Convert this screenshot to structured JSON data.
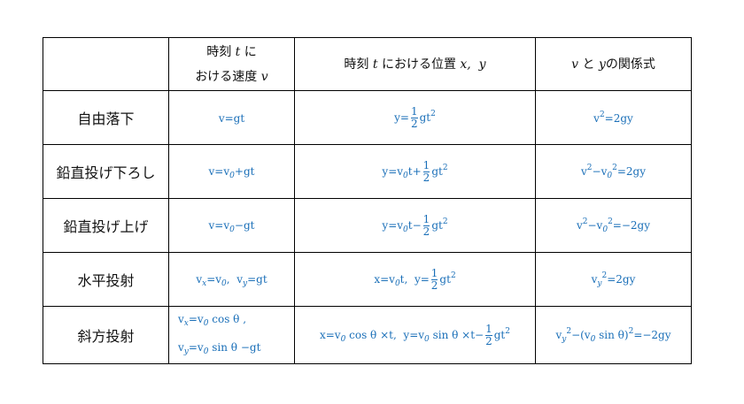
{
  "header": {
    "col2_line1": "時刻",
    "col2_t": "t",
    "col2_ni": "に",
    "col2_line2": "おける速度",
    "col2_v": "v",
    "col3_a": "時刻",
    "col3_t": "t",
    "col3_b": "における位置",
    "col3_x": "x,",
    "col3_y": "y",
    "col4_v": "v",
    "col4_to": "と",
    "col4_y": "y",
    "col4_rest": "の関係式"
  },
  "formula_color": "#1a6fb8",
  "rows": [
    {
      "label": "自由落下",
      "velocity": [
        [
          "v=gt"
        ]
      ],
      "position": [
        "y=",
        {
          "frac": [
            "1",
            "2"
          ]
        },
        "gt",
        {
          "sup": "2"
        }
      ],
      "relation": [
        "v",
        {
          "sup": "2"
        },
        "=2gy"
      ]
    },
    {
      "label": "鉛直投げ下ろし",
      "velocity": [
        [
          "v=v",
          {
            "sub": "0"
          },
          "+gt"
        ]
      ],
      "position": [
        "y=v",
        {
          "sub": "0"
        },
        "t+",
        {
          "frac": [
            "1",
            "2"
          ]
        },
        "gt",
        {
          "sup": "2"
        }
      ],
      "relation": [
        "v",
        {
          "sup": "2"
        },
        "−v",
        {
          "sub": "0"
        },
        {
          "sup": "2"
        },
        "=2gy"
      ]
    },
    {
      "label": "鉛直投げ上げ",
      "velocity": [
        [
          "v=v",
          {
            "sub": "0"
          },
          "−gt"
        ]
      ],
      "position": [
        "y=v",
        {
          "sub": "0"
        },
        "t−",
        {
          "frac": [
            "1",
            "2"
          ]
        },
        "gt",
        {
          "sup": "2"
        }
      ],
      "relation": [
        "v",
        {
          "sup": "2"
        },
        "−v",
        {
          "sub": "0"
        },
        {
          "sup": "2"
        },
        "=−2gy"
      ]
    },
    {
      "label": "水平投射",
      "velocity": [
        [
          "v",
          {
            "sub": "x"
          },
          "=v",
          {
            "sub": "0"
          },
          ",  v",
          {
            "sub": "y"
          },
          "=gt"
        ]
      ],
      "position": [
        "x=v",
        {
          "sub": "0"
        },
        "t,  y=",
        {
          "frac": [
            "1",
            "2"
          ]
        },
        "gt",
        {
          "sup": "2"
        }
      ],
      "relation": [
        "v",
        {
          "sub": "y"
        },
        {
          "sup": "2"
        },
        "=2gy"
      ]
    },
    {
      "label": "斜方投射",
      "velocity": [
        [
          "v",
          {
            "sub": "x"
          },
          "=v",
          {
            "sub": "0"
          },
          " cos θ ,"
        ],
        [
          "v",
          {
            "sub": "y"
          },
          "=v",
          {
            "sub": "0"
          },
          " sin θ −gt"
        ]
      ],
      "position": [
        "x=v",
        {
          "sub": "0"
        },
        " cos θ ×t,  y=v",
        {
          "sub": "0"
        },
        " sin θ ×t−",
        {
          "frac": [
            "1",
            "2"
          ]
        },
        "gt",
        {
          "sup": "2"
        }
      ],
      "relation": [
        "v",
        {
          "sub": "y"
        },
        {
          "sup": "2"
        },
        "−(v",
        {
          "sub": "0"
        },
        " sin θ)",
        {
          "sup": "2"
        },
        "=−2gy"
      ]
    }
  ]
}
